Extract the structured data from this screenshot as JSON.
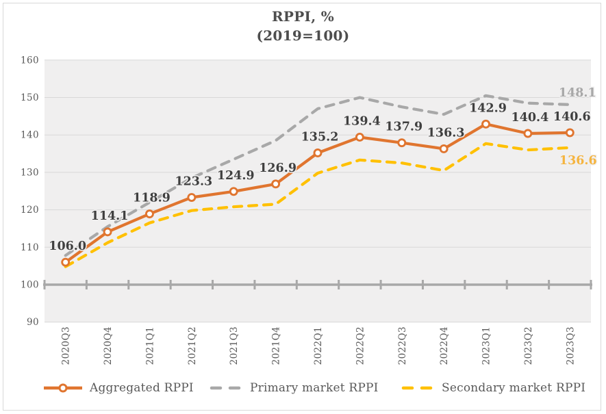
{
  "title": {
    "line1": "RPPI, %",
    "line2": "(2019=100)"
  },
  "chart_data": {
    "type": "line",
    "title": "RPPI, %",
    "subtitle": "(2019=100)",
    "categories": [
      "2020Q3",
      "2020Q4",
      "2021Q1",
      "2021Q2",
      "2021Q3",
      "2021Q4",
      "2022Q1",
      "2022Q2",
      "2022Q3",
      "2022Q4",
      "2023Q1",
      "2023Q2",
      "2023Q3"
    ],
    "series": [
      {
        "name": "Aggregated RPPI",
        "color": "#e0752f",
        "line_style": "solid",
        "marker": "open-circle",
        "values": [
          106.0,
          114.1,
          118.9,
          123.3,
          124.9,
          126.9,
          135.2,
          139.4,
          137.9,
          136.3,
          142.9,
          140.4,
          140.6
        ],
        "point_labels": [
          "106.0",
          "114.1",
          "118.9",
          "123.3",
          "124.9",
          "126.9",
          "135.2",
          "139.4",
          "137.9",
          "136.3",
          "142.9",
          "140.4",
          "140.6"
        ],
        "label_color": "#3f3f3f"
      },
      {
        "name": "Primary market RPPI",
        "color": "#a8a8a8",
        "line_style": "dashed",
        "marker": "none",
        "values": [
          107.8,
          115.5,
          122.0,
          128.5,
          133.5,
          138.5,
          147.0,
          150.0,
          147.5,
          145.5,
          150.5,
          148.5,
          148.1
        ],
        "end_label": "148.1",
        "end_label_color": "#a8a8a8"
      },
      {
        "name": "Secondary market RPPI",
        "color": "#ffc000",
        "line_style": "dashed",
        "marker": "none",
        "values": [
          104.8,
          111.2,
          116.5,
          119.8,
          120.8,
          121.5,
          129.8,
          133.3,
          132.5,
          130.5,
          137.7,
          136.0,
          136.6
        ],
        "end_label": "136.6",
        "end_label_color": "#f5b43f"
      }
    ],
    "ylim": [
      90,
      160
    ],
    "ytick_labels": [
      "160",
      "150",
      "140",
      "130",
      "120",
      "110",
      "100",
      "90"
    ],
    "baseline_value": 100,
    "grid": "horizontal",
    "legend_position": "bottom",
    "plot_bg_color": "#f0efef",
    "grid_color": "#d8d8d8",
    "axis_text_color": "#595959",
    "baseline_color": "#a8a8a8",
    "page_border_color": "#d9d9d9"
  }
}
